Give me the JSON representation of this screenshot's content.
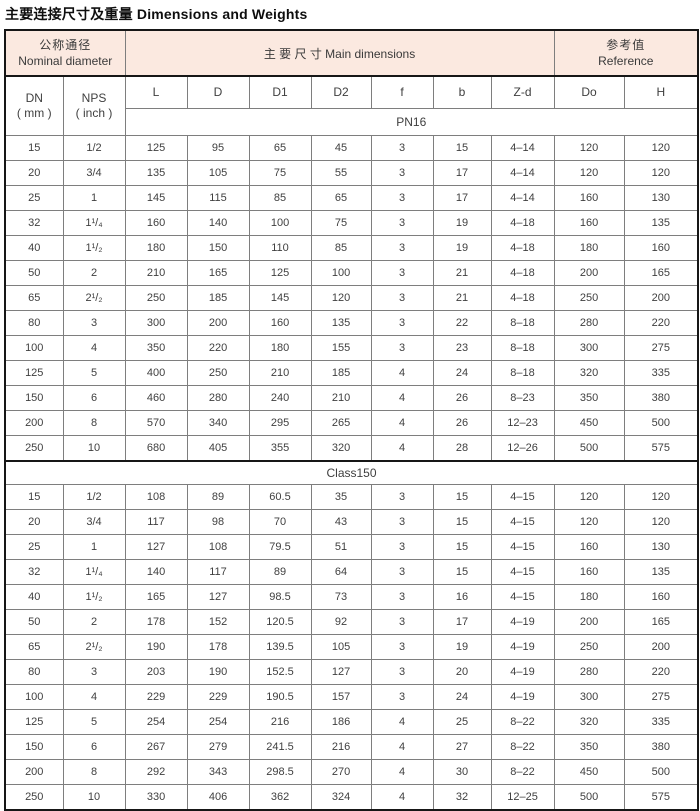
{
  "title": "主要连接尺寸及重量 Dimensions and Weights",
  "colors": {
    "header_bg": "#fbe9e0",
    "grid_line": "#7e7e7e",
    "frame": "#161616"
  },
  "table": {
    "header": {
      "nominal_zh": "公称通径",
      "nominal_en": "Nominal diameter",
      "main_dimensions": "主 要 尺 寸  Main  dimensions",
      "reference_zh": "参考值",
      "reference_en": "Reference",
      "dn_line1": "DN",
      "dn_line2": "( mm )",
      "nps_line1": "NPS",
      "nps_line2": "( inch )"
    },
    "columns": [
      "L",
      "D",
      "D1",
      "D2",
      "f",
      "b",
      "Z-d",
      "Do",
      "H"
    ],
    "sections": [
      {
        "label": "PN16",
        "rows": [
          [
            "15",
            "1/2",
            "125",
            "95",
            "65",
            "45",
            "3",
            "15",
            "4–14",
            "120",
            "120"
          ],
          [
            "20",
            "3/4",
            "135",
            "105",
            "75",
            "55",
            "3",
            "17",
            "4–14",
            "120",
            "120"
          ],
          [
            "25",
            "1",
            "145",
            "115",
            "85",
            "65",
            "3",
            "17",
            "4–14",
            "160",
            "130"
          ],
          [
            "32",
            "1¹/₄",
            "160",
            "140",
            "100",
            "75",
            "3",
            "19",
            "4–18",
            "160",
            "135"
          ],
          [
            "40",
            "1¹/₂",
            "180",
            "150",
            "110",
            "85",
            "3",
            "19",
            "4–18",
            "180",
            "160"
          ],
          [
            "50",
            "2",
            "210",
            "165",
            "125",
            "100",
            "3",
            "21",
            "4–18",
            "200",
            "165"
          ],
          [
            "65",
            "2¹/₂",
            "250",
            "185",
            "145",
            "120",
            "3",
            "21",
            "4–18",
            "250",
            "200"
          ],
          [
            "80",
            "3",
            "300",
            "200",
            "160",
            "135",
            "3",
            "22",
            "8–18",
            "280",
            "220"
          ],
          [
            "100",
            "4",
            "350",
            "220",
            "180",
            "155",
            "3",
            "23",
            "8–18",
            "300",
            "275"
          ],
          [
            "125",
            "5",
            "400",
            "250",
            "210",
            "185",
            "4",
            "24",
            "8–18",
            "320",
            "335"
          ],
          [
            "150",
            "6",
            "460",
            "280",
            "240",
            "210",
            "4",
            "26",
            "8–23",
            "350",
            "380"
          ],
          [
            "200",
            "8",
            "570",
            "340",
            "295",
            "265",
            "4",
            "26",
            "12–23",
            "450",
            "500"
          ],
          [
            "250",
            "10",
            "680",
            "405",
            "355",
            "320",
            "4",
            "28",
            "12–26",
            "500",
            "575"
          ]
        ]
      },
      {
        "label": "Class150",
        "rows": [
          [
            "15",
            "1/2",
            "108",
            "89",
            "60.5",
            "35",
            "3",
            "15",
            "4–15",
            "120",
            "120"
          ],
          [
            "20",
            "3/4",
            "117",
            "98",
            "70",
            "43",
            "3",
            "15",
            "4–15",
            "120",
            "120"
          ],
          [
            "25",
            "1",
            "127",
            "108",
            "79.5",
            "51",
            "3",
            "15",
            "4–15",
            "160",
            "130"
          ],
          [
            "32",
            "1¹/₄",
            "140",
            "117",
            "89",
            "64",
            "3",
            "15",
            "4–15",
            "160",
            "135"
          ],
          [
            "40",
            "1¹/₂",
            "165",
            "127",
            "98.5",
            "73",
            "3",
            "16",
            "4–15",
            "180",
            "160"
          ],
          [
            "50",
            "2",
            "178",
            "152",
            "120.5",
            "92",
            "3",
            "17",
            "4–19",
            "200",
            "165"
          ],
          [
            "65",
            "2¹/₂",
            "190",
            "178",
            "139.5",
            "105",
            "3",
            "19",
            "4–19",
            "250",
            "200"
          ],
          [
            "80",
            "3",
            "203",
            "190",
            "152.5",
            "127",
            "3",
            "20",
            "4–19",
            "280",
            "220"
          ],
          [
            "100",
            "4",
            "229",
            "229",
            "190.5",
            "157",
            "3",
            "24",
            "4–19",
            "300",
            "275"
          ],
          [
            "125",
            "5",
            "254",
            "254",
            "216",
            "186",
            "4",
            "25",
            "8–22",
            "320",
            "335"
          ],
          [
            "150",
            "6",
            "267",
            "279",
            "241.5",
            "216",
            "4",
            "27",
            "8–22",
            "350",
            "380"
          ],
          [
            "200",
            "8",
            "292",
            "343",
            "298.5",
            "270",
            "4",
            "30",
            "8–22",
            "450",
            "500"
          ],
          [
            "250",
            "10",
            "330",
            "406",
            "362",
            "324",
            "4",
            "32",
            "12–25",
            "500",
            "575"
          ]
        ]
      }
    ]
  }
}
